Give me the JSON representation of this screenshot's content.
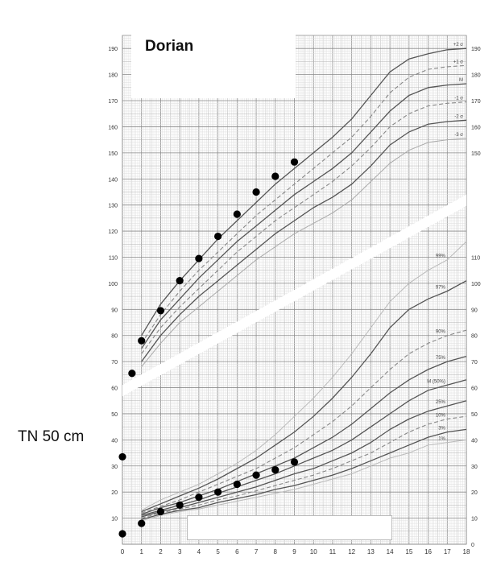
{
  "patient_name": "Dorian",
  "annotation": "TN 50 cm",
  "chart_data": {
    "type": "scatter",
    "title": "",
    "xlabel": "",
    "ylabel": "",
    "xlim": [
      0,
      18
    ],
    "ylim": [
      0,
      195
    ],
    "x_ticks": [
      "0",
      "1",
      "2",
      "3",
      "4",
      "5",
      "6",
      "7",
      "8",
      "9",
      "10",
      "11",
      "12",
      "13",
      "14",
      "15",
      "16",
      "17",
      "18"
    ],
    "y_ticks_left": [
      "10",
      "20",
      "30",
      "40",
      "50",
      "60",
      "70",
      "80",
      "90",
      "100",
      "110",
      "120",
      "130",
      "140",
      "150",
      "160",
      "170",
      "180",
      "190"
    ],
    "y_ticks_right_top": [
      "150",
      "160",
      "170",
      "180",
      "190"
    ],
    "y_ticks_right_bottom": [
      "0",
      "10",
      "20",
      "30",
      "40",
      "50",
      "60",
      "70",
      "80",
      "90",
      "100",
      "110"
    ],
    "height_curve_labels": [
      "+2 σ",
      "+1 σ",
      "M",
      "-1 σ",
      "-2 σ",
      "-3 σ"
    ],
    "weight_curve_labels": [
      "99%",
      "97%",
      "90%",
      "75%",
      "M (50%)",
      "25%",
      "10%",
      "3%",
      "1%"
    ],
    "series": [
      {
        "name": "",
        "x": [
          0,
          0.5,
          1,
          2,
          3,
          4,
          5,
          6,
          7,
          8,
          9
        ],
        "y": [
          33.5,
          65.5,
          78,
          89.5,
          101,
          109.5,
          118,
          126.5,
          135,
          141,
          146.5
        ]
      },
      {
        "name": "",
        "x": [
          0,
          1,
          2,
          3,
          4,
          5,
          6,
          7,
          8,
          9
        ],
        "y": [
          4,
          8,
          12.5,
          15,
          18,
          20,
          23,
          26.5,
          28.5,
          31.5
        ]
      }
    ],
    "height_curves": [
      {
        "x": [
          1,
          2,
          3,
          4,
          5,
          6,
          7,
          8,
          9,
          10,
          11,
          12,
          13,
          14,
          15,
          16,
          17,
          18
        ],
        "y": [
          80,
          92,
          101,
          109,
          117,
          124,
          131,
          138,
          144,
          150,
          156,
          163,
          172,
          181,
          186,
          188,
          189.5,
          190
        ]
      },
      {
        "x": [
          1,
          2,
          3,
          4,
          5,
          6,
          7,
          8,
          9,
          10,
          11,
          12,
          13,
          14,
          15,
          16,
          17,
          18
        ],
        "y": [
          77,
          88,
          97,
          105,
          112,
          119,
          126,
          132,
          138,
          144,
          150,
          156,
          164,
          173,
          179,
          182,
          183,
          183.5
        ]
      },
      {
        "x": [
          1,
          2,
          3,
          4,
          5,
          6,
          7,
          8,
          9,
          10,
          11,
          12,
          13,
          14,
          15,
          16,
          17,
          18
        ],
        "y": [
          75,
          86,
          94,
          102,
          109,
          116,
          122,
          128,
          134,
          139,
          144,
          150,
          158,
          166,
          172,
          175,
          176,
          176.5
        ]
      },
      {
        "x": [
          1,
          2,
          3,
          4,
          5,
          6,
          7,
          8,
          9,
          10,
          11,
          12,
          13,
          14,
          15,
          16,
          17,
          18
        ],
        "y": [
          73,
          83,
          91,
          98,
          105,
          112,
          118,
          124,
          129,
          134,
          139,
          145,
          152,
          160,
          165,
          168,
          169,
          169.5
        ]
      },
      {
        "x": [
          1,
          2,
          3,
          4,
          5,
          6,
          7,
          8,
          9,
          10,
          11,
          12,
          13,
          14,
          15,
          16,
          17,
          18
        ],
        "y": [
          70,
          80,
          88,
          95,
          101,
          107,
          113,
          119,
          124,
          129,
          133,
          138,
          145,
          153,
          158,
          161,
          162,
          162.5
        ]
      },
      {
        "x": [
          1,
          2,
          3,
          4,
          5,
          6,
          7,
          8,
          9,
          10,
          11,
          12,
          13,
          14,
          15,
          16,
          17,
          18
        ],
        "y": [
          68,
          77,
          85,
          91,
          97,
          103,
          109,
          114,
          119,
          123,
          127,
          132,
          139,
          146,
          151,
          154,
          155,
          155.5
        ]
      }
    ],
    "weight_curves": [
      {
        "x": [
          1,
          2,
          3,
          4,
          5,
          6,
          7,
          8,
          9,
          10,
          11,
          12,
          13,
          14,
          15,
          16,
          17,
          18
        ],
        "y": [
          13,
          17,
          20,
          23,
          27,
          31,
          36,
          42,
          49,
          56,
          64,
          73,
          83,
          93,
          100,
          105,
          109,
          116
        ]
      },
      {
        "x": [
          1,
          2,
          3,
          4,
          5,
          6,
          7,
          8,
          9,
          10,
          11,
          12,
          13,
          14,
          15,
          16,
          17,
          18
        ],
        "y": [
          12.5,
          15.5,
          18.5,
          21.5,
          25,
          29,
          33,
          38,
          43,
          49,
          56,
          64,
          73,
          83,
          90,
          94,
          97,
          101
        ]
      },
      {
        "x": [
          1,
          2,
          3,
          4,
          5,
          6,
          7,
          8,
          9,
          10,
          11,
          12,
          13,
          14,
          15,
          16,
          17,
          18
        ],
        "y": [
          12,
          14.5,
          17,
          20,
          23,
          26,
          29,
          33,
          37,
          42,
          47,
          53,
          60,
          67,
          73,
          77,
          80,
          82
        ]
      },
      {
        "x": [
          1,
          2,
          3,
          4,
          5,
          6,
          7,
          8,
          9,
          10,
          11,
          12,
          13,
          14,
          15,
          16,
          17,
          18
        ],
        "y": [
          11.5,
          14,
          16,
          18.5,
          21,
          24,
          27,
          30,
          33,
          37,
          41,
          46,
          52,
          58,
          63,
          67,
          70,
          72
        ]
      },
      {
        "x": [
          1,
          2,
          3,
          4,
          5,
          6,
          7,
          8,
          9,
          10,
          11,
          12,
          13,
          14,
          15,
          16,
          17,
          18
        ],
        "y": [
          11,
          13,
          15,
          17,
          19.5,
          22,
          24.5,
          27,
          30,
          33,
          36,
          40,
          45,
          50,
          55,
          59,
          61,
          63
        ]
      },
      {
        "x": [
          1,
          2,
          3,
          4,
          5,
          6,
          7,
          8,
          9,
          10,
          11,
          12,
          13,
          14,
          15,
          16,
          17,
          18
        ],
        "y": [
          10.5,
          12.5,
          14,
          16,
          18,
          20,
          22,
          24.5,
          27,
          29,
          32,
          35,
          39,
          44,
          48,
          51,
          53,
          55
        ]
      },
      {
        "x": [
          1,
          2,
          3,
          4,
          5,
          6,
          7,
          8,
          9,
          10,
          11,
          12,
          13,
          14,
          15,
          16,
          17,
          18
        ],
        "y": [
          10,
          12,
          13.5,
          15,
          17,
          18.5,
          20.5,
          22.5,
          24.5,
          26.5,
          29,
          32,
          35,
          39,
          43,
          46,
          48,
          49
        ]
      },
      {
        "x": [
          1,
          2,
          3,
          4,
          5,
          6,
          7,
          8,
          9,
          10,
          11,
          12,
          13,
          14,
          15,
          16,
          17,
          18
        ],
        "y": [
          9.5,
          11.5,
          13,
          14,
          16,
          17.5,
          19,
          21,
          22.5,
          24.5,
          26.5,
          29,
          32,
          35,
          38,
          41,
          43,
          44
        ]
      },
      {
        "x": [
          1,
          2,
          3,
          4,
          5,
          6,
          7,
          8,
          9,
          10,
          11,
          12,
          13,
          14,
          15,
          16,
          17,
          18
        ],
        "y": [
          9,
          11,
          12.5,
          13.5,
          15,
          16.5,
          18,
          19.5,
          21,
          23,
          25,
          27,
          30,
          33,
          35,
          38,
          39,
          40
        ]
      }
    ],
    "grid": true,
    "legend": "none"
  }
}
